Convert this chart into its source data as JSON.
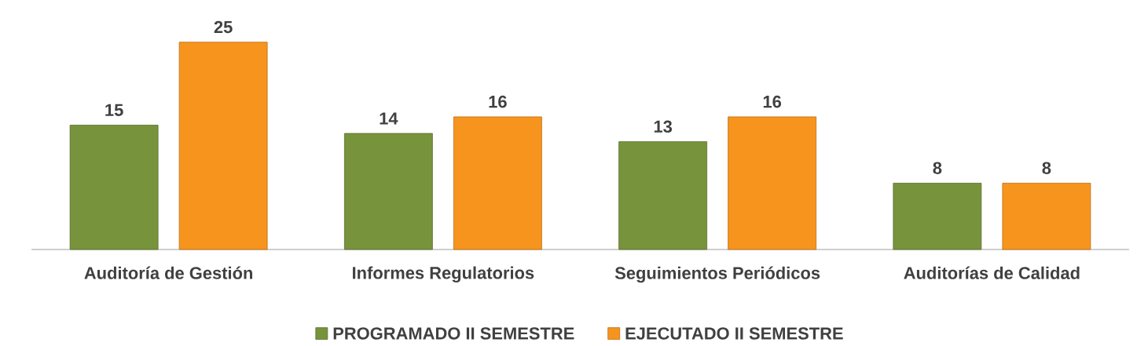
{
  "chart_data": {
    "type": "bar",
    "categories": [
      "Auditoría de Gestión",
      "Informes Regulatorios",
      "Seguimientos Periódicos",
      "Auditorías de Calidad"
    ],
    "series": [
      {
        "name": "PROGRAMADO II SEMESTRE",
        "color": "#77933c",
        "values": [
          15,
          14,
          13,
          8
        ]
      },
      {
        "name": "EJECUTADO II SEMESTRE",
        "color": "#f7941d",
        "values": [
          25,
          16,
          16,
          8
        ]
      }
    ],
    "data_labels": true,
    "legend": "bottom"
  }
}
